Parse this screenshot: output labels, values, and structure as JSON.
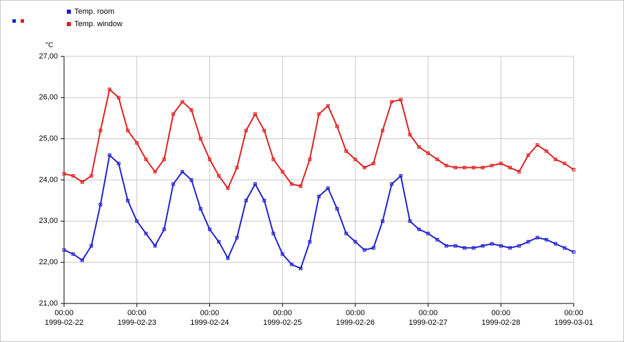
{
  "chart_data": {
    "type": "line",
    "y_label": "°C",
    "xlim": [
      "1999-02-22 00:00",
      "1999-03-01 00:00"
    ],
    "xticks": [
      {
        "value": "1999-02-22 00:00",
        "label": [
          "00:00",
          "1999-02-22"
        ]
      },
      {
        "value": "1999-02-23 00:00",
        "label": [
          "00:00",
          "1999-02-23"
        ]
      },
      {
        "value": "1999-02-24 00:00",
        "label": [
          "00:00",
          "1999-02-24"
        ]
      },
      {
        "value": "1999-02-25 00:00",
        "label": [
          "00:00",
          "1999-02-25"
        ]
      },
      {
        "value": "1999-02-26 00:00",
        "label": [
          "00:00",
          "1999-02-26"
        ]
      },
      {
        "value": "1999-02-27 00:00",
        "label": [
          "00:00",
          "1999-02-27"
        ]
      },
      {
        "value": "1999-02-28 00:00",
        "label": [
          "00:00",
          "1999-02-28"
        ]
      },
      {
        "value": "1999-03-01 00:00",
        "label": [
          "00:00",
          "1999-03-01"
        ]
      }
    ],
    "ylim": [
      21,
      27
    ],
    "yticks": [
      {
        "value": 21,
        "label": "21,00"
      },
      {
        "value": 22,
        "label": "22,00"
      },
      {
        "value": 23,
        "label": "23,00"
      },
      {
        "value": 24,
        "label": "24,00"
      },
      {
        "value": 25,
        "label": "25,00"
      },
      {
        "value": 26,
        "label": "26,00"
      },
      {
        "value": 27,
        "label": "27,00"
      }
    ],
    "grid": true,
    "x": [
      "1999-02-22 00:00",
      "1999-02-22 03:00",
      "1999-02-22 06:00",
      "1999-02-22 09:00",
      "1999-02-22 12:00",
      "1999-02-22 15:00",
      "1999-02-22 18:00",
      "1999-02-22 21:00",
      "1999-02-23 00:00",
      "1999-02-23 03:00",
      "1999-02-23 06:00",
      "1999-02-23 09:00",
      "1999-02-23 12:00",
      "1999-02-23 15:00",
      "1999-02-23 18:00",
      "1999-02-23 21:00",
      "1999-02-24 00:00",
      "1999-02-24 03:00",
      "1999-02-24 06:00",
      "1999-02-24 09:00",
      "1999-02-24 12:00",
      "1999-02-24 15:00",
      "1999-02-24 18:00",
      "1999-02-24 21:00",
      "1999-02-25 00:00",
      "1999-02-25 03:00",
      "1999-02-25 06:00",
      "1999-02-25 09:00",
      "1999-02-25 12:00",
      "1999-02-25 15:00",
      "1999-02-25 18:00",
      "1999-02-25 21:00",
      "1999-02-26 00:00",
      "1999-02-26 03:00",
      "1999-02-26 06:00",
      "1999-02-26 09:00",
      "1999-02-26 12:00",
      "1999-02-26 15:00",
      "1999-02-26 18:00",
      "1999-02-26 21:00",
      "1999-02-27 00:00",
      "1999-02-27 03:00",
      "1999-02-27 06:00",
      "1999-02-27 09:00",
      "1999-02-27 12:00",
      "1999-02-27 15:00",
      "1999-02-27 18:00",
      "1999-02-27 21:00",
      "1999-02-28 00:00",
      "1999-02-28 03:00",
      "1999-02-28 06:00",
      "1999-02-28 09:00",
      "1999-02-28 12:00",
      "1999-02-28 15:00",
      "1999-02-28 18:00",
      "1999-02-28 21:00",
      "1999-03-01 00:00"
    ],
    "series": [
      {
        "name": "Temp. room",
        "color": "#2020d0",
        "values": [
          22.3,
          22.2,
          22.05,
          22.4,
          23.4,
          24.6,
          24.4,
          23.5,
          23.0,
          22.7,
          22.4,
          22.8,
          23.9,
          24.2,
          24.0,
          23.3,
          22.8,
          22.5,
          22.1,
          22.6,
          23.5,
          23.9,
          23.5,
          22.7,
          22.2,
          21.95,
          21.85,
          22.5,
          23.6,
          23.8,
          23.3,
          22.7,
          22.5,
          22.3,
          22.35,
          23.0,
          23.9,
          24.1,
          23.0,
          22.8,
          22.7,
          22.55,
          22.4,
          22.4,
          22.35,
          22.35,
          22.4,
          22.45,
          22.4,
          22.35,
          22.4,
          22.5,
          22.6,
          22.55,
          22.45,
          22.35,
          22.25
        ]
      },
      {
        "name": "Temp. window",
        "color": "#e02020",
        "values": [
          24.15,
          24.1,
          23.95,
          24.1,
          25.2,
          26.2,
          26.0,
          25.2,
          24.9,
          24.5,
          24.2,
          24.5,
          25.6,
          25.9,
          25.7,
          25.0,
          24.5,
          24.1,
          23.8,
          24.3,
          25.2,
          25.6,
          25.2,
          24.5,
          24.2,
          23.9,
          23.85,
          24.5,
          25.6,
          25.8,
          25.3,
          24.7,
          24.5,
          24.3,
          24.4,
          25.2,
          25.9,
          25.95,
          25.1,
          24.8,
          24.65,
          24.5,
          24.35,
          24.3,
          24.3,
          24.3,
          24.3,
          24.35,
          24.4,
          24.3,
          24.2,
          24.6,
          24.85,
          24.7,
          24.5,
          24.4,
          24.25
        ]
      }
    ]
  }
}
